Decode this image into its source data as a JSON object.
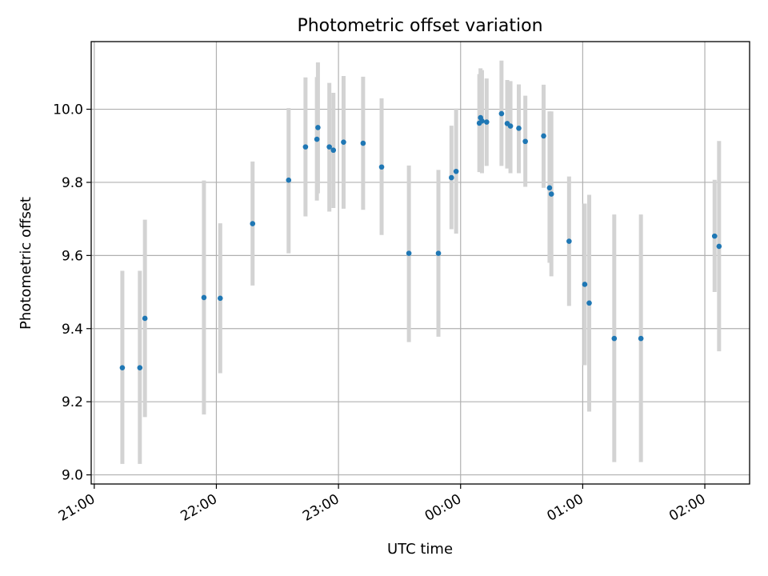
{
  "chart_data": {
    "type": "scatter",
    "title": "Photometric offset variation",
    "xlabel": "UTC time",
    "ylabel": "Photometric offset",
    "x_unit": "minutes after 21:00 UTC",
    "xlim": [
      -1.5,
      322
    ],
    "ylim": [
      8.975,
      10.185
    ],
    "grid": true,
    "xticks": [
      {
        "value": 0,
        "label": "21:00"
      },
      {
        "value": 60,
        "label": "22:00"
      },
      {
        "value": 120,
        "label": "23:00"
      },
      {
        "value": 180,
        "label": "00:00"
      },
      {
        "value": 240,
        "label": "01:00"
      },
      {
        "value": 300,
        "label": "02:00"
      }
    ],
    "yticks": [
      {
        "value": 9.0,
        "label": "9.0"
      },
      {
        "value": 9.2,
        "label": "9.2"
      },
      {
        "value": 9.4,
        "label": "9.4"
      },
      {
        "value": 9.6,
        "label": "9.6"
      },
      {
        "value": 9.8,
        "label": "9.8"
      },
      {
        "value": 10.0,
        "label": "10.0"
      }
    ],
    "series": [
      {
        "name": "offset",
        "color": "#1f77b4",
        "errorbar_color": "#d3d3d3",
        "points": [
          {
            "x": 13.8,
            "y": 9.293,
            "ylo": 9.03,
            "yhi": 9.558
          },
          {
            "x": 22.4,
            "y": 9.293,
            "ylo": 9.03,
            "yhi": 9.558
          },
          {
            "x": 24.9,
            "y": 9.428,
            "ylo": 9.158,
            "yhi": 9.698
          },
          {
            "x": 53.9,
            "y": 9.485,
            "ylo": 9.165,
            "yhi": 9.805
          },
          {
            "x": 61.9,
            "y": 9.483,
            "ylo": 9.278,
            "yhi": 9.688
          },
          {
            "x": 77.8,
            "y": 9.687,
            "ylo": 9.518,
            "yhi": 9.857
          },
          {
            "x": 95.5,
            "y": 9.806,
            "ylo": 9.606,
            "yhi": 10.003
          },
          {
            "x": 103.8,
            "y": 9.897,
            "ylo": 9.707,
            "yhi": 10.087
          },
          {
            "x": 109.4,
            "y": 9.918,
            "ylo": 9.75,
            "yhi": 10.088
          },
          {
            "x": 109.9,
            "y": 9.95,
            "ylo": 9.77,
            "yhi": 10.128
          },
          {
            "x": 115.5,
            "y": 9.897,
            "ylo": 9.72,
            "yhi": 10.072
          },
          {
            "x": 117.5,
            "y": 9.888,
            "ylo": 9.73,
            "yhi": 10.045
          },
          {
            "x": 122.5,
            "y": 9.91,
            "ylo": 9.728,
            "yhi": 10.091
          },
          {
            "x": 132.1,
            "y": 9.907,
            "ylo": 9.725,
            "yhi": 10.089
          },
          {
            "x": 141.2,
            "y": 9.842,
            "ylo": 9.656,
            "yhi": 10.03
          },
          {
            "x": 154.6,
            "y": 9.606,
            "ylo": 9.363,
            "yhi": 9.846
          },
          {
            "x": 169.1,
            "y": 9.606,
            "ylo": 9.378,
            "yhi": 9.834
          },
          {
            "x": 175.5,
            "y": 9.813,
            "ylo": 9.672,
            "yhi": 9.955
          },
          {
            "x": 177.8,
            "y": 9.83,
            "ylo": 9.66,
            "yhi": 10.002
          },
          {
            "x": 189.2,
            "y": 9.962,
            "ylo": 9.828,
            "yhi": 10.096
          },
          {
            "x": 189.8,
            "y": 9.977,
            "ylo": 9.838,
            "yhi": 10.112
          },
          {
            "x": 190.5,
            "y": 9.968,
            "ylo": 9.825,
            "yhi": 10.107
          },
          {
            "x": 192.8,
            "y": 9.965,
            "ylo": 9.845,
            "yhi": 10.084
          },
          {
            "x": 200.1,
            "y": 9.988,
            "ylo": 9.845,
            "yhi": 10.133
          },
          {
            "x": 202.9,
            "y": 9.961,
            "ylo": 9.838,
            "yhi": 10.08
          },
          {
            "x": 204.5,
            "y": 9.954,
            "ylo": 9.825,
            "yhi": 10.077
          },
          {
            "x": 208.6,
            "y": 9.948,
            "ylo": 9.825,
            "yhi": 10.068
          },
          {
            "x": 211.8,
            "y": 9.912,
            "ylo": 9.788,
            "yhi": 10.037
          },
          {
            "x": 220.8,
            "y": 9.927,
            "ylo": 9.785,
            "yhi": 10.067
          },
          {
            "x": 223.7,
            "y": 9.785,
            "ylo": 9.58,
            "yhi": 9.994
          },
          {
            "x": 224.6,
            "y": 9.768,
            "ylo": 9.543,
            "yhi": 9.994
          },
          {
            "x": 233.3,
            "y": 9.639,
            "ylo": 9.462,
            "yhi": 9.816
          },
          {
            "x": 241.0,
            "y": 9.521,
            "ylo": 9.3,
            "yhi": 9.742
          },
          {
            "x": 243.2,
            "y": 9.47,
            "ylo": 9.173,
            "yhi": 9.766
          },
          {
            "x": 255.5,
            "y": 9.373,
            "ylo": 9.035,
            "yhi": 9.712
          },
          {
            "x": 268.6,
            "y": 9.373,
            "ylo": 9.035,
            "yhi": 9.712
          },
          {
            "x": 304.8,
            "y": 9.653,
            "ylo": 9.5,
            "yhi": 9.807
          },
          {
            "x": 307.0,
            "y": 9.625,
            "ylo": 9.338,
            "yhi": 9.913
          }
        ]
      }
    ]
  }
}
